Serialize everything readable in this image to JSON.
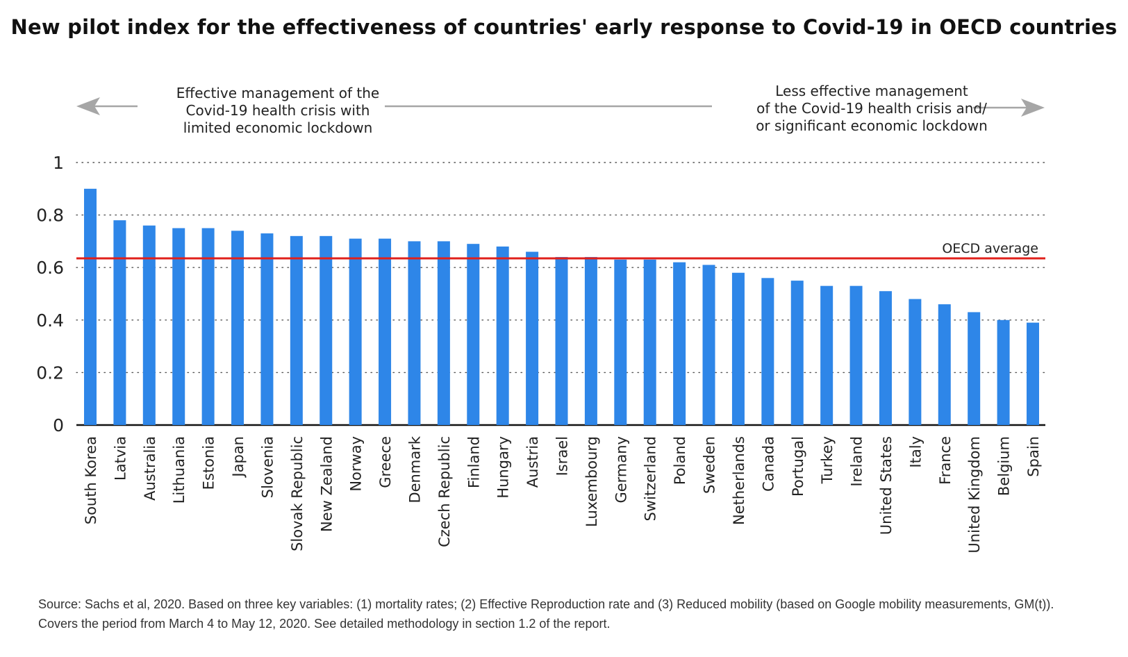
{
  "header": {
    "title": "New pilot index for the effectiveness of countries' early response to Covid-19 in OECD countries"
  },
  "notes": {
    "left": [
      "Effective management of the",
      "Covid-19 health crisis with",
      "limited economic lockdown"
    ],
    "right": [
      "Less effective management",
      "of the Covid-19 health crisis and/",
      "or significant economic lockdown"
    ]
  },
  "colors": {
    "bar": "#2e86e8",
    "reference_line": "#e0201b",
    "arrow": "#a6a6a6",
    "grid": "#555555"
  },
  "chart_data": {
    "type": "bar",
    "title": "New pilot index for the effectiveness of countries' early response to Covid-19 in OECD countries",
    "xlabel": "",
    "ylabel": "",
    "ylim": [
      0,
      1
    ],
    "yticks": [
      0,
      0.2,
      0.4,
      0.6,
      0.8,
      1
    ],
    "ytick_labels": [
      "0",
      "0.2",
      "0.4",
      "0.6",
      "0.8",
      "1"
    ],
    "grid": "dotted horizontal",
    "categories": [
      "South Korea",
      "Latvia",
      "Australia",
      "Lithuania",
      "Estonia",
      "Japan",
      "Slovenia",
      "Slovak Republic",
      "New Zealand",
      "Norway",
      "Greece",
      "Denmark",
      "Czech Republic",
      "Finland",
      "Hungary",
      "Austria",
      "Israel",
      "Luxembourg",
      "Germany",
      "Switzerland",
      "Poland",
      "Sweden",
      "Netherlands",
      "Canada",
      "Portugal",
      "Turkey",
      "Ireland",
      "United States",
      "Italy",
      "France",
      "United Kingdom",
      "Belgium",
      "Spain"
    ],
    "values": [
      0.9,
      0.78,
      0.76,
      0.75,
      0.75,
      0.74,
      0.73,
      0.72,
      0.72,
      0.71,
      0.71,
      0.7,
      0.7,
      0.69,
      0.68,
      0.66,
      0.64,
      0.64,
      0.63,
      0.63,
      0.62,
      0.61,
      0.58,
      0.56,
      0.55,
      0.53,
      0.53,
      0.51,
      0.48,
      0.46,
      0.43,
      0.4,
      0.39
    ],
    "reference_line": {
      "label": "OECD average",
      "value": 0.635
    }
  },
  "footer": {
    "source": [
      "Source: Sachs et al, 2020. Based on three key variables: (1) mortality rates; (2) Effective Reproduction rate and (3) Reduced mobility (based on Google mobility measurements, GM(t)).",
      "Covers the period from March 4 to May 12, 2020. See detailed methodology in section 1.2 of the report."
    ]
  }
}
